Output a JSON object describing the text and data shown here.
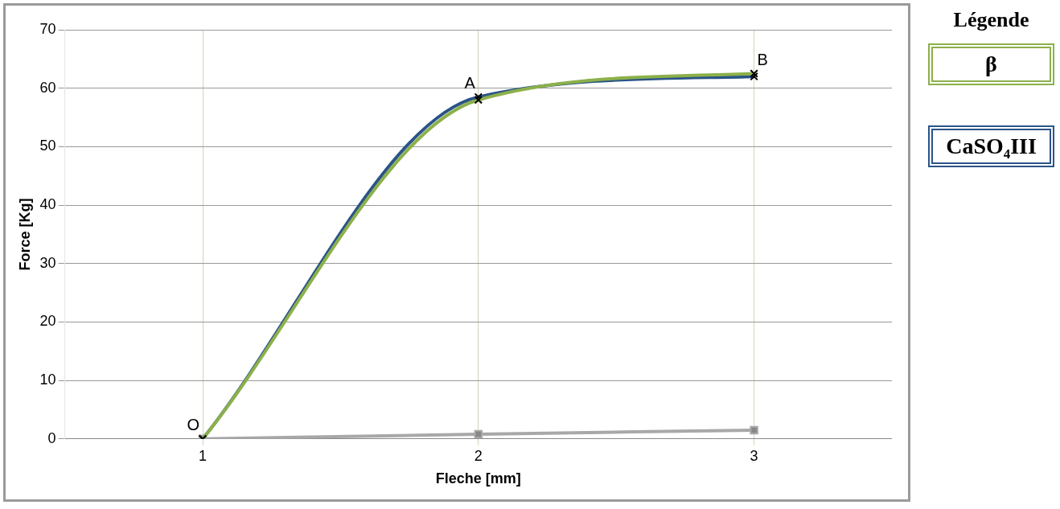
{
  "chart_data": {
    "type": "line",
    "xlabel": "Fleche [mm]",
    "ylabel": "Force [Kg]",
    "legend_title": "Légende",
    "categories": [
      "1",
      "2",
      "3"
    ],
    "series": [
      {
        "name": "β",
        "color": "#8cb04a",
        "values": [
          0,
          58,
          62.5
        ]
      },
      {
        "name": "CaSO₄III",
        "color": "#2a5488",
        "values": [
          0,
          58.5,
          62
        ]
      },
      {
        "color": "#a8a8a8",
        "values": [
          0,
          0.8,
          1.5
        ],
        "marker": "square"
      }
    ],
    "ylim": [
      0,
      70
    ],
    "yticks": [
      0,
      10,
      20,
      30,
      40,
      50,
      60,
      70
    ],
    "grid": true,
    "legend": "right",
    "marker": "cross",
    "line_style": "solid",
    "annotations": [
      {
        "text": "O",
        "x": "1",
        "y": 0
      },
      {
        "text": "A",
        "x": "2",
        "y": 58.5
      },
      {
        "text": "B",
        "x": "3",
        "y": 62.5
      }
    ]
  }
}
